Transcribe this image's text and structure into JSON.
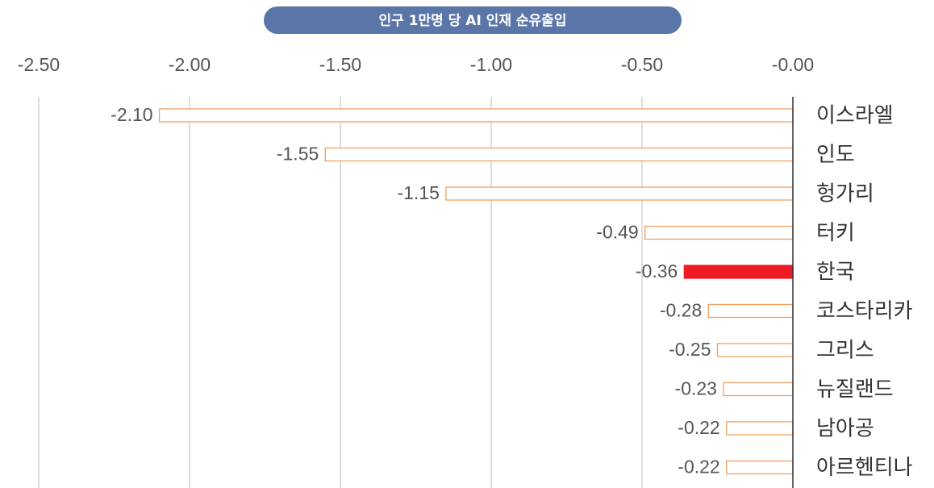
{
  "chart_data": {
    "type": "barh",
    "title": "인구 1만명 당 AI 인재 순유출입",
    "categories": [
      "이스라엘",
      "인도",
      "헝가리",
      "터키",
      "한국",
      "코스타리카",
      "그리스",
      "뉴질랜드",
      "남아공",
      "아르헨티나"
    ],
    "values": [
      -2.1,
      -1.55,
      -1.15,
      -0.49,
      -0.36,
      -0.28,
      -0.25,
      -0.23,
      -0.22,
      -0.22
    ],
    "value_labels": [
      "-2.10",
      "-1.55",
      "-1.15",
      "-0.49",
      "-0.36",
      "-0.28",
      "-0.25",
      "-0.23",
      "-0.22",
      "-0.22"
    ],
    "fills": [
      "#ffffff",
      "#ffffff",
      "#ffffff",
      "#ffffff",
      "#ed1c24",
      "#ffffff",
      "#ffffff",
      "#ffffff",
      "#ffffff",
      "#ffffff"
    ],
    "strokes": [
      "#f0a060",
      "#f0a060",
      "#f0a060",
      "#f0a060",
      "#ed1c24",
      "#f0a060",
      "#f0a060",
      "#f0a060",
      "#f0a060",
      "#f0a060"
    ],
    "xlim": [
      -2.5,
      0
    ],
    "xticks": [
      {
        "value": -2.5,
        "label": "-2.50"
      },
      {
        "value": -2.0,
        "label": "-2.00"
      },
      {
        "value": -1.5,
        "label": "-1.50"
      },
      {
        "value": -1.0,
        "label": "-1.00"
      },
      {
        "value": -0.5,
        "label": "-0.50"
      },
      {
        "value": 0,
        "label": "-0.00"
      }
    ],
    "grid": true,
    "title_color": "#5a76a8"
  }
}
